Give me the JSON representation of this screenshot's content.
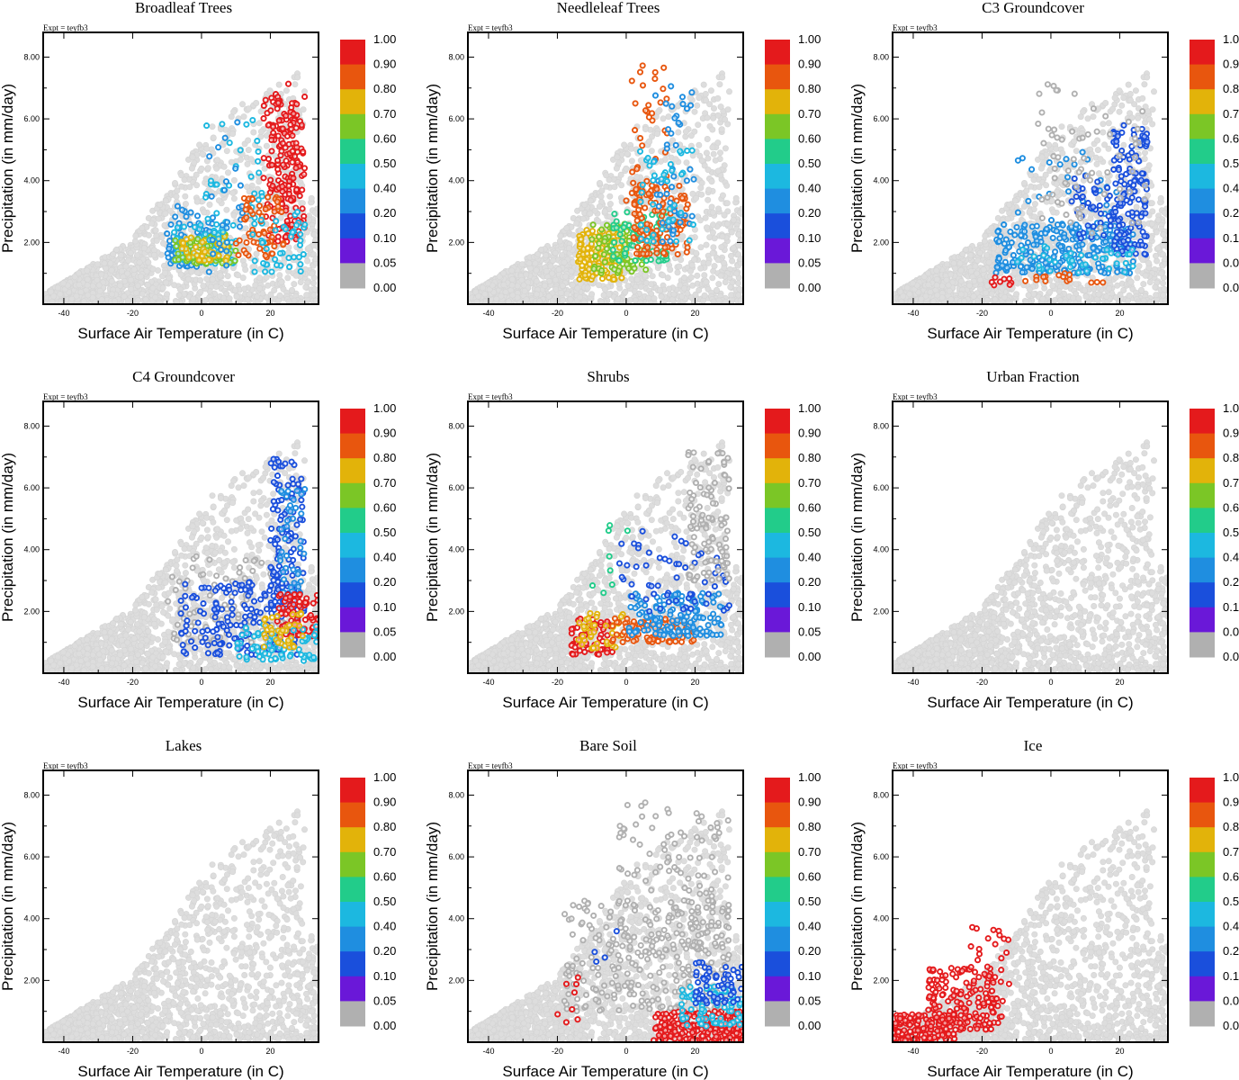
{
  "chart_data": {
    "type": "scatter",
    "experiment_label": "Expt = teyfb3",
    "xlabel": "Surface Air Temperature (in C)",
    "ylabel": "Precipitation (in mm/day)",
    "xlim": [
      -46,
      34
    ],
    "ylim": [
      0,
      8.8
    ],
    "xticks": [
      "-40",
      "-20",
      "0",
      "20"
    ],
    "xtick_values": [
      -40,
      -20,
      0,
      20
    ],
    "yticks": [
      "2.00",
      "4.00",
      "6.00",
      "8.00"
    ],
    "ytick_values": [
      2,
      4,
      6,
      8
    ],
    "colorbar": {
      "levels": [
        "1.00",
        "0.90",
        "0.80",
        "0.70",
        "0.60",
        "0.50",
        "0.40",
        "0.20",
        "0.10",
        "0.05",
        "0.00"
      ],
      "colors": [
        "#e41a1c",
        "#e8560e",
        "#e2b30a",
        "#7bc626",
        "#22cc8a",
        "#1cb8e0",
        "#1f8ee0",
        "#1a4fdc",
        "#6a18d8",
        "#b0b0b0"
      ]
    },
    "background_color": "#dddddd",
    "panels": [
      {
        "title": "Broadleaf Trees",
        "clusters": [
          {
            "fraction": 0.15,
            "x": [
              -10,
              4
            ],
            "y": [
              1.2,
              3.2
            ],
            "n": 70
          },
          {
            "fraction": 0.35,
            "x": [
              -8,
              10
            ],
            "y": [
              1.3,
              2.6
            ],
            "n": 80
          },
          {
            "fraction": 0.55,
            "x": [
              -8,
              10
            ],
            "y": [
              1.3,
              2.3
            ],
            "n": 70
          },
          {
            "fraction": 0.65,
            "x": [
              -6,
              8
            ],
            "y": [
              1.4,
              2.2
            ],
            "n": 40
          },
          {
            "fraction": 0.35,
            "x": [
              0,
              18
            ],
            "y": [
              2.0,
              6.0
            ],
            "n": 40
          },
          {
            "fraction": 0.15,
            "x": [
              2,
              12
            ],
            "y": [
              1.0,
              7.0
            ],
            "n": 25
          },
          {
            "fraction": 0.85,
            "x": [
              18,
              30
            ],
            "y": [
              2.0,
              6.8
            ],
            "n": 160
          },
          {
            "fraction": 0.95,
            "x": [
              22,
              28
            ],
            "y": [
              3.0,
              7.2
            ],
            "n": 45
          },
          {
            "fraction": 0.75,
            "x": [
              10,
              24
            ],
            "y": [
              1.5,
              3.5
            ],
            "n": 60
          },
          {
            "fraction": 0.25,
            "x": [
              14,
              30
            ],
            "y": [
              1.0,
              3.0
            ],
            "n": 40
          }
        ]
      },
      {
        "title": "Needleleaf Trees",
        "clusters": [
          {
            "fraction": 0.65,
            "x": [
              -14,
              0
            ],
            "y": [
              0.8,
              2.4
            ],
            "n": 130
          },
          {
            "fraction": 0.55,
            "x": [
              -10,
              6
            ],
            "y": [
              1.0,
              2.6
            ],
            "n": 80
          },
          {
            "fraction": 0.45,
            "x": [
              -4,
              12
            ],
            "y": [
              1.4,
              3.0
            ],
            "n": 60
          },
          {
            "fraction": 0.75,
            "x": [
              2,
              18
            ],
            "y": [
              1.6,
              4.0
            ],
            "n": 120
          },
          {
            "fraction": 0.75,
            "x": [
              0,
              12
            ],
            "y": [
              3.0,
              7.8
            ],
            "n": 40
          },
          {
            "fraction": 0.15,
            "x": [
              8,
              20
            ],
            "y": [
              2.0,
              7.2
            ],
            "n": 50
          },
          {
            "fraction": 0.35,
            "x": [
              4,
              20
            ],
            "y": [
              2.0,
              5.0
            ],
            "n": 40
          }
        ]
      },
      {
        "title": "C3 Groundcover",
        "clusters": [
          {
            "fraction": 0.15,
            "x": [
              -16,
              24
            ],
            "y": [
              1.0,
              2.6
            ],
            "n": 250
          },
          {
            "fraction": 0.15,
            "x": [
              -10,
              20
            ],
            "y": [
              2.0,
              5.0
            ],
            "n": 40
          },
          {
            "fraction": 0.07,
            "x": [
              18,
              28
            ],
            "y": [
              1.6,
              6.0
            ],
            "n": 140
          },
          {
            "fraction": 0.07,
            "x": [
              6,
              20
            ],
            "y": [
              2.0,
              4.2
            ],
            "n": 40
          },
          {
            "fraction": 0.35,
            "x": [
              -10,
              24
            ],
            "y": [
              1.0,
              1.9
            ],
            "n": 40
          },
          {
            "fraction": 0.0,
            "x": [
              -4,
              28
            ],
            "y": [
              2.2,
              7.2
            ],
            "n": 70
          },
          {
            "fraction": 0.75,
            "x": [
              -8,
              18
            ],
            "y": [
              0.7,
              1.0
            ],
            "n": 15
          },
          {
            "fraction": 0.85,
            "x": [
              -18,
              -10
            ],
            "y": [
              0.6,
              0.9
            ],
            "n": 8
          }
        ]
      },
      {
        "title": "C4 Groundcover",
        "clusters": [
          {
            "fraction": 0.0,
            "x": [
              -10,
              24
            ],
            "y": [
              1.0,
              3.8
            ],
            "n": 90
          },
          {
            "fraction": 0.07,
            "x": [
              -6,
              28
            ],
            "y": [
              0.6,
              3.0
            ],
            "n": 170
          },
          {
            "fraction": 0.07,
            "x": [
              20,
              30
            ],
            "y": [
              2.0,
              7.2
            ],
            "n": 110
          },
          {
            "fraction": 0.15,
            "x": [
              22,
              30
            ],
            "y": [
              2.6,
              6.0
            ],
            "n": 40
          },
          {
            "fraction": 0.85,
            "x": [
              22,
              34
            ],
            "y": [
              1.2,
              2.6
            ],
            "n": 80
          },
          {
            "fraction": 0.35,
            "x": [
              10,
              34
            ],
            "y": [
              0.4,
              1.6
            ],
            "n": 70
          },
          {
            "fraction": 0.65,
            "x": [
              18,
              30
            ],
            "y": [
              0.8,
              2.0
            ],
            "n": 40
          }
        ]
      },
      {
        "title": "Shrubs",
        "clusters": [
          {
            "fraction": 0.85,
            "x": [
              -16,
              -4
            ],
            "y": [
              0.6,
              1.8
            ],
            "n": 60
          },
          {
            "fraction": 0.65,
            "x": [
              -14,
              0
            ],
            "y": [
              0.8,
              2.0
            ],
            "n": 40
          },
          {
            "fraction": 0.75,
            "x": [
              -4,
              20
            ],
            "y": [
              1.0,
              1.8
            ],
            "n": 80
          },
          {
            "fraction": 0.15,
            "x": [
              0,
              28
            ],
            "y": [
              1.2,
              2.6
            ],
            "n": 150
          },
          {
            "fraction": 0.07,
            "x": [
              -2,
              30
            ],
            "y": [
              2.0,
              4.6
            ],
            "n": 60
          },
          {
            "fraction": 0.0,
            "x": [
              18,
              30
            ],
            "y": [
              3.0,
              7.2
            ],
            "n": 100
          },
          {
            "fraction": 0.45,
            "x": [
              -10,
              4
            ],
            "y": [
              2.6,
              4.8
            ],
            "n": 8
          }
        ]
      },
      {
        "title": "Urban Fraction",
        "clusters": []
      },
      {
        "title": "Lakes",
        "clusters": []
      },
      {
        "title": "Bare Soil",
        "clusters": [
          {
            "fraction": 0.0,
            "x": [
              -18,
              30
            ],
            "y": [
              1.0,
              4.6
            ],
            "n": 260
          },
          {
            "fraction": 0.0,
            "x": [
              -2,
              30
            ],
            "y": [
              3.0,
              7.8
            ],
            "n": 120
          },
          {
            "fraction": 0.95,
            "x": [
              8,
              34
            ],
            "y": [
              0.05,
              1.0
            ],
            "n": 220
          },
          {
            "fraction": 0.35,
            "x": [
              16,
              34
            ],
            "y": [
              0.5,
              1.8
            ],
            "n": 80
          },
          {
            "fraction": 0.07,
            "x": [
              20,
              34
            ],
            "y": [
              1.2,
              2.6
            ],
            "n": 60
          },
          {
            "fraction": 0.95,
            "x": [
              -20,
              -14
            ],
            "y": [
              0.6,
              2.2
            ],
            "n": 8
          },
          {
            "fraction": 0.07,
            "x": [
              -10,
              -2
            ],
            "y": [
              2.6,
              3.6
            ],
            "n": 4
          }
        ]
      },
      {
        "title": "Ice",
        "clusters": [
          {
            "fraction": 0.95,
            "x": [
              -46,
              -28
            ],
            "y": [
              0.05,
              0.9
            ],
            "n": 160
          },
          {
            "fraction": 0.95,
            "x": [
              -36,
              -14
            ],
            "y": [
              0.4,
              2.4
            ],
            "n": 170
          },
          {
            "fraction": 0.95,
            "x": [
              -24,
              -12
            ],
            "y": [
              1.6,
              3.8
            ],
            "n": 25
          }
        ]
      }
    ]
  }
}
